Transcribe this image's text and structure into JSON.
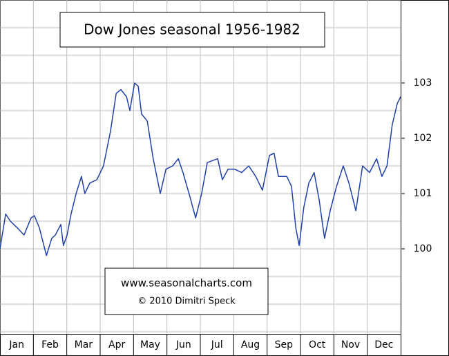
{
  "chart_data": {
    "type": "line",
    "title": "Dow Jones seasonal 1956-1982",
    "annotations": [
      "www.seasonalcharts.com",
      "© 2010   Dimitri Speck"
    ],
    "categories": [
      "Jan",
      "Feb",
      "Mar",
      "Apr",
      "May",
      "Jun",
      "Jul",
      "Aug",
      "Sep",
      "Oct",
      "Nov",
      "Dec"
    ],
    "xlim": [
      0,
      12
    ],
    "ylim": [
      98.5,
      104.5
    ],
    "yticks": [
      100,
      101,
      102,
      103
    ],
    "ygrid": [
      98.5,
      99,
      99.5,
      100,
      100.5,
      101,
      101.5,
      102,
      102.5,
      103,
      103.5,
      104,
      104.5
    ],
    "grid": true,
    "series": [
      {
        "color": "#1f3fa8",
        "x": [
          0,
          0.17,
          0.31,
          0.52,
          0.72,
          0.93,
          1.03,
          1.18,
          1.39,
          1.55,
          1.66,
          1.82,
          1.9,
          2.01,
          2.13,
          2.28,
          2.44,
          2.54,
          2.69,
          2.9,
          3.1,
          3.31,
          3.48,
          3.62,
          3.79,
          3.89,
          4.03,
          4.14,
          4.24,
          4.41,
          4.59,
          4.8,
          4.97,
          5.17,
          5.34,
          5.48,
          5.69,
          5.86,
          6.04,
          6.21,
          6.52,
          6.66,
          6.83,
          7.03,
          7.24,
          7.45,
          7.66,
          7.86,
          8.07,
          8.21,
          8.34,
          8.59,
          8.73,
          8.86,
          8.96,
          9.1,
          9.25,
          9.41,
          9.56,
          9.72,
          9.89,
          10.08,
          10.28,
          10.45,
          10.66,
          10.86,
          11.07,
          11.28,
          11.44,
          11.59,
          11.75,
          11.9,
          12
        ],
        "values": [
          100.0,
          100.63,
          100.5,
          100.38,
          100.25,
          100.56,
          100.6,
          100.38,
          99.88,
          100.19,
          100.25,
          100.44,
          100.06,
          100.25,
          100.63,
          101.0,
          101.31,
          101.0,
          101.19,
          101.25,
          101.5,
          102.13,
          102.81,
          102.88,
          102.75,
          102.5,
          103.0,
          102.94,
          102.44,
          102.31,
          101.63,
          101.0,
          101.44,
          101.5,
          101.63,
          101.38,
          100.94,
          100.56,
          101.0,
          101.56,
          101.63,
          101.25,
          101.44,
          101.44,
          101.38,
          101.5,
          101.31,
          101.06,
          101.69,
          101.73,
          101.31,
          101.31,
          101.13,
          100.38,
          100.06,
          100.75,
          101.19,
          101.38,
          100.88,
          100.19,
          100.69,
          101.13,
          101.5,
          101.19,
          100.69,
          101.5,
          101.38,
          101.63,
          101.31,
          101.5,
          102.25,
          102.63,
          102.75
        ]
      }
    ]
  }
}
